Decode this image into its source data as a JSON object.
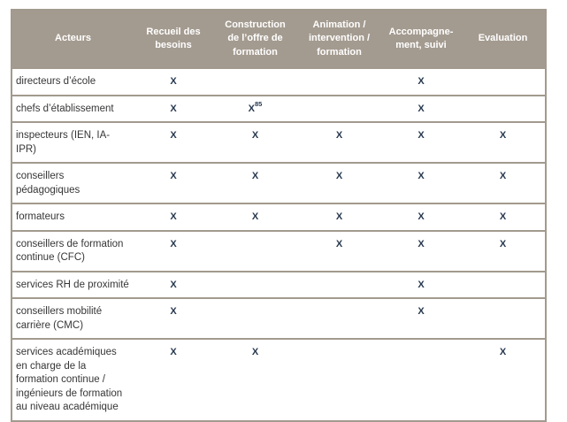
{
  "colors": {
    "header_bg": "#a49b90",
    "border": "#a29a8e",
    "header_text": "#ffffff",
    "body_text": "#363636",
    "mark_color": "#26374e"
  },
  "table": {
    "mark_symbol": "X",
    "columns": [
      {
        "label": "Acteurs"
      },
      {
        "label": "Recueil des\nbesoins"
      },
      {
        "label": "Construction\nde l’offre de\nformation"
      },
      {
        "label": "Animation /\nintervention /\nformation"
      },
      {
        "label": "Accompagne-\nment, suivi"
      },
      {
        "label": "Evaluation"
      }
    ],
    "rows": [
      {
        "actor": "directeurs d’école",
        "cells": [
          "X",
          "",
          "",
          "X",
          ""
        ]
      },
      {
        "actor": "chefs d’établissement",
        "cells": [
          "X",
          "X^85",
          "",
          "X",
          ""
        ]
      },
      {
        "actor": "inspecteurs (IEN, IA-IPR)",
        "cells": [
          "X",
          "X",
          "X",
          "X",
          "X"
        ]
      },
      {
        "actor": "conseillers pédagogiques",
        "cells": [
          "X",
          "X",
          "X",
          "X",
          "X"
        ]
      },
      {
        "actor": "formateurs",
        "cells": [
          "X",
          "X",
          "X",
          "X",
          "X"
        ]
      },
      {
        "actor": "conseillers de formation continue (CFC)",
        "cells": [
          "X",
          "",
          "X",
          "X",
          "X"
        ]
      },
      {
        "actor": "services RH de proximité",
        "cells": [
          "X",
          "",
          "",
          "X",
          ""
        ]
      },
      {
        "actor": "conseillers mobilité carrière (CMC)",
        "cells": [
          "X",
          "",
          "",
          "X",
          ""
        ]
      },
      {
        "actor": "services académiques en charge de la formation continue / ingénieurs de formation au niveau académique",
        "cells": [
          "X",
          "X",
          "",
          "",
          "X"
        ]
      }
    ]
  }
}
